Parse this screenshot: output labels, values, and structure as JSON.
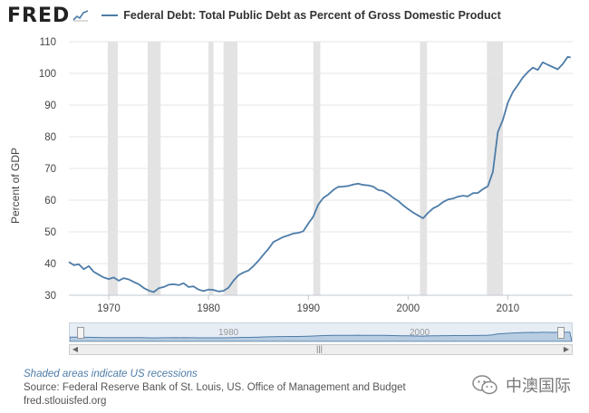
{
  "header": {
    "logo_text": "FRED",
    "legend_label": "Federal Debt: Total Public Debt as Percent of Gross Domestic Product",
    "legend_color": "#4d7ca8"
  },
  "chart_data": {
    "type": "line",
    "title": "",
    "xlabel": "",
    "ylabel": "Percent of GDP",
    "xlim": [
      1966,
      2016.5
    ],
    "ylim": [
      30,
      110
    ],
    "yticks": [
      30,
      40,
      50,
      60,
      70,
      80,
      90,
      100,
      110
    ],
    "xticks": [
      1970,
      1980,
      1990,
      2000,
      2010
    ],
    "grid": true,
    "legend_position": "top-left",
    "line_color": "#4d7ca8",
    "recession_color": "#e3e3e3",
    "recessions": [
      [
        1969.9,
        1970.9
      ],
      [
        1973.9,
        1975.2
      ],
      [
        1980.0,
        1980.5
      ],
      [
        1981.5,
        1982.9
      ],
      [
        1990.5,
        1991.2
      ],
      [
        2001.2,
        2001.9
      ],
      [
        2007.9,
        2009.5
      ]
    ],
    "series": [
      {
        "x": [
          1966.0,
          1966.5,
          1967.0,
          1967.5,
          1968.0,
          1968.5,
          1969.0,
          1969.5,
          1970.0,
          1970.5,
          1971.0,
          1971.5,
          1972.0,
          1972.5,
          1973.0,
          1973.5,
          1974.0,
          1974.5,
          1975.0,
          1975.5,
          1976.0,
          1976.5,
          1977.0,
          1977.5,
          1978.0,
          1978.5,
          1979.0,
          1979.5,
          1980.0,
          1980.5,
          1981.0,
          1981.5,
          1982.0,
          1982.5,
          1983.0,
          1983.5,
          1984.0,
          1984.5,
          1985.0,
          1985.5,
          1986.0,
          1986.5,
          1987.0,
          1987.5,
          1988.0,
          1988.5,
          1989.0,
          1989.5,
          1990.0,
          1990.5,
          1991.0,
          1991.5,
          1992.0,
          1992.5,
          1993.0,
          1993.5,
          1994.0,
          1994.5,
          1995.0,
          1995.5,
          1996.0,
          1996.5,
          1997.0,
          1997.5,
          1998.0,
          1998.5,
          1999.0,
          1999.5,
          2000.0,
          2000.5,
          2001.0,
          2001.5,
          2002.0,
          2002.5,
          2003.0,
          2003.5,
          2004.0,
          2004.5,
          2005.0,
          2005.5,
          2006.0,
          2006.5,
          2007.0,
          2007.5,
          2008.0,
          2008.5,
          2009.0,
          2009.5,
          2010.0,
          2010.5,
          2011.0,
          2011.5,
          2012.0,
          2012.5,
          2013.0,
          2013.5,
          2014.0,
          2014.5,
          2015.0,
          2015.5,
          2016.0,
          2016.3
        ],
        "values": [
          40.5,
          39.5,
          39.8,
          38.2,
          39.2,
          37.4,
          36.5,
          35.6,
          35.1,
          35.6,
          34.6,
          35.4,
          35.0,
          34.2,
          33.5,
          32.3,
          31.5,
          31.0,
          32.2,
          32.6,
          33.3,
          33.5,
          33.2,
          33.8,
          32.6,
          32.8,
          31.8,
          31.3,
          31.8,
          31.7,
          31.2,
          31.4,
          32.4,
          34.6,
          36.3,
          37.2,
          37.8,
          39.2,
          40.9,
          42.8,
          44.6,
          46.8,
          47.6,
          48.4,
          48.9,
          49.5,
          49.7,
          50.2,
          52.6,
          54.8,
          58.6,
          60.7,
          61.8,
          63.2,
          64.2,
          64.3,
          64.5,
          64.9,
          65.2,
          64.8,
          64.7,
          64.3,
          63.2,
          62.9,
          62.0,
          60.8,
          59.8,
          58.4,
          57.2,
          56.1,
          55.2,
          54.3,
          56.0,
          57.4,
          58.2,
          59.4,
          60.2,
          60.5,
          61.1,
          61.4,
          61.2,
          62.2,
          62.3,
          63.5,
          64.4,
          68.9,
          81.5,
          85.3,
          90.7,
          94.1,
          96.3,
          98.7,
          100.4,
          101.8,
          101.1,
          103.5,
          102.7,
          102.0,
          101.3,
          102.9,
          105.2,
          105.0
        ]
      }
    ]
  },
  "navigator": {
    "label_1980": "1980",
    "label_2000": "2000",
    "left_arrow": "◀",
    "right_arrow": "▶",
    "grip": "|||"
  },
  "footer": {
    "recession_note": "Shaded areas indicate US recessions",
    "source": "Source: Federal Reserve Bank of St. Louis, US. Office of Management and Budget",
    "url": "fred.stlouisfed.org"
  },
  "watermark": {
    "text": "中澳国际"
  }
}
